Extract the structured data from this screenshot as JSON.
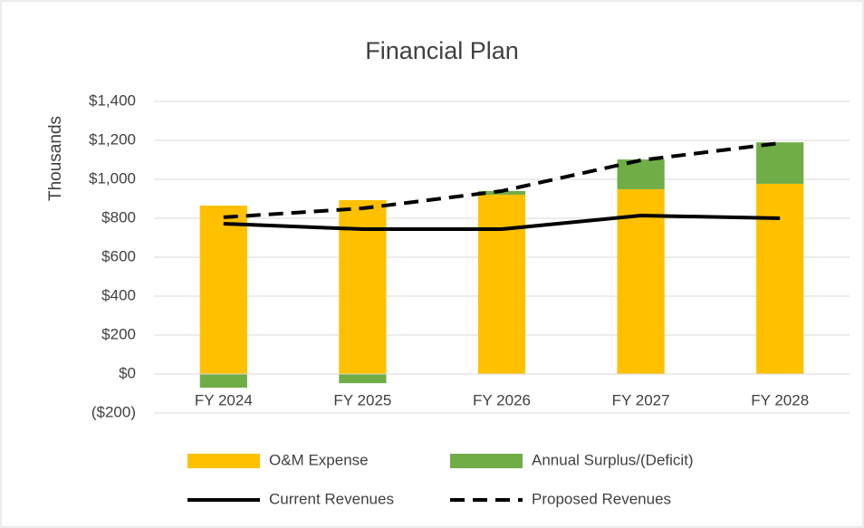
{
  "chart_data": {
    "type": "bar",
    "title": "Financial Plan",
    "y_axis_label": "Thousands",
    "categories": [
      "FY 2024",
      "FY 2025",
      "FY 2026",
      "FY 2027",
      "FY 2028"
    ],
    "series": [
      {
        "name": "O&M Expense",
        "type": "bar",
        "color": "#ffc000",
        "values": [
          865,
          893,
          921,
          949,
          977
        ]
      },
      {
        "name": "Annual Surplus/(Deficit)",
        "type": "bar",
        "color": "#70ad47",
        "values": [
          -70,
          -47,
          19,
          153,
          213
        ]
      },
      {
        "name": "Current Revenues",
        "type": "line",
        "color": "#000000",
        "dash": false,
        "values": [
          772,
          744,
          744,
          814,
          800
        ]
      },
      {
        "name": "Proposed Revenues",
        "type": "line",
        "color": "#000000",
        "dash": true,
        "values": [
          805,
          851,
          940,
          1098,
          1186
        ]
      }
    ],
    "stacked": true,
    "ylim": [
      -200,
      1400
    ],
    "yticks": [
      {
        "value": -200,
        "label": "($200)"
      },
      {
        "value": 0,
        "label": "$0"
      },
      {
        "value": 200,
        "label": "$200"
      },
      {
        "value": 400,
        "label": "$400"
      },
      {
        "value": 600,
        "label": "$600"
      },
      {
        "value": 800,
        "label": "$800"
      },
      {
        "value": 1000,
        "label": "$1,000"
      },
      {
        "value": 1200,
        "label": "$1,200"
      },
      {
        "value": 1400,
        "label": "$1,400"
      }
    ],
    "grid": true,
    "legend": "bottom"
  }
}
